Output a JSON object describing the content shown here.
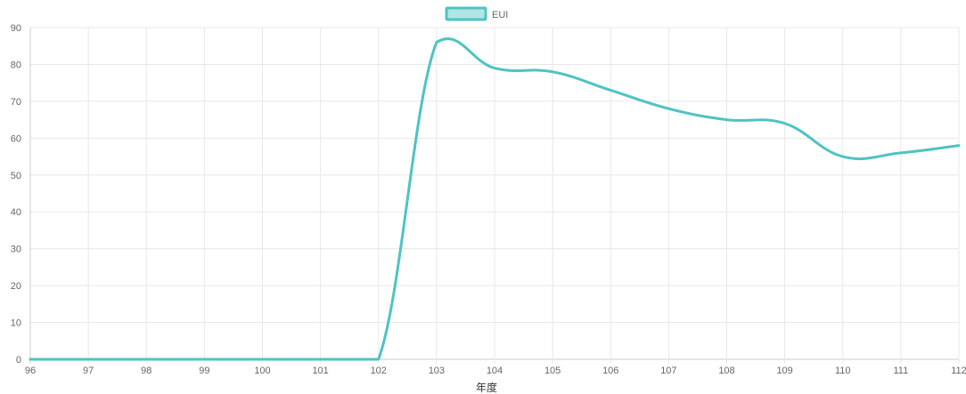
{
  "chart_data": {
    "type": "line",
    "title": "",
    "xlabel": "年度",
    "ylabel": "",
    "categories": [
      "96",
      "97",
      "98",
      "99",
      "100",
      "101",
      "102",
      "103",
      "104",
      "105",
      "106",
      "107",
      "108",
      "109",
      "110",
      "111",
      "112"
    ],
    "series": [
      {
        "name": "EUI",
        "values": [
          0,
          0,
          0,
          0,
          0,
          0,
          0,
          86,
          79,
          78,
          73,
          68,
          65,
          64,
          55,
          56,
          58
        ],
        "color": "#4fc3c3"
      }
    ],
    "ylim": [
      0,
      90
    ],
    "yticks": [
      0,
      10,
      20,
      30,
      40,
      50,
      60,
      70,
      80,
      90
    ],
    "grid": true,
    "legend_position": "top-center"
  }
}
